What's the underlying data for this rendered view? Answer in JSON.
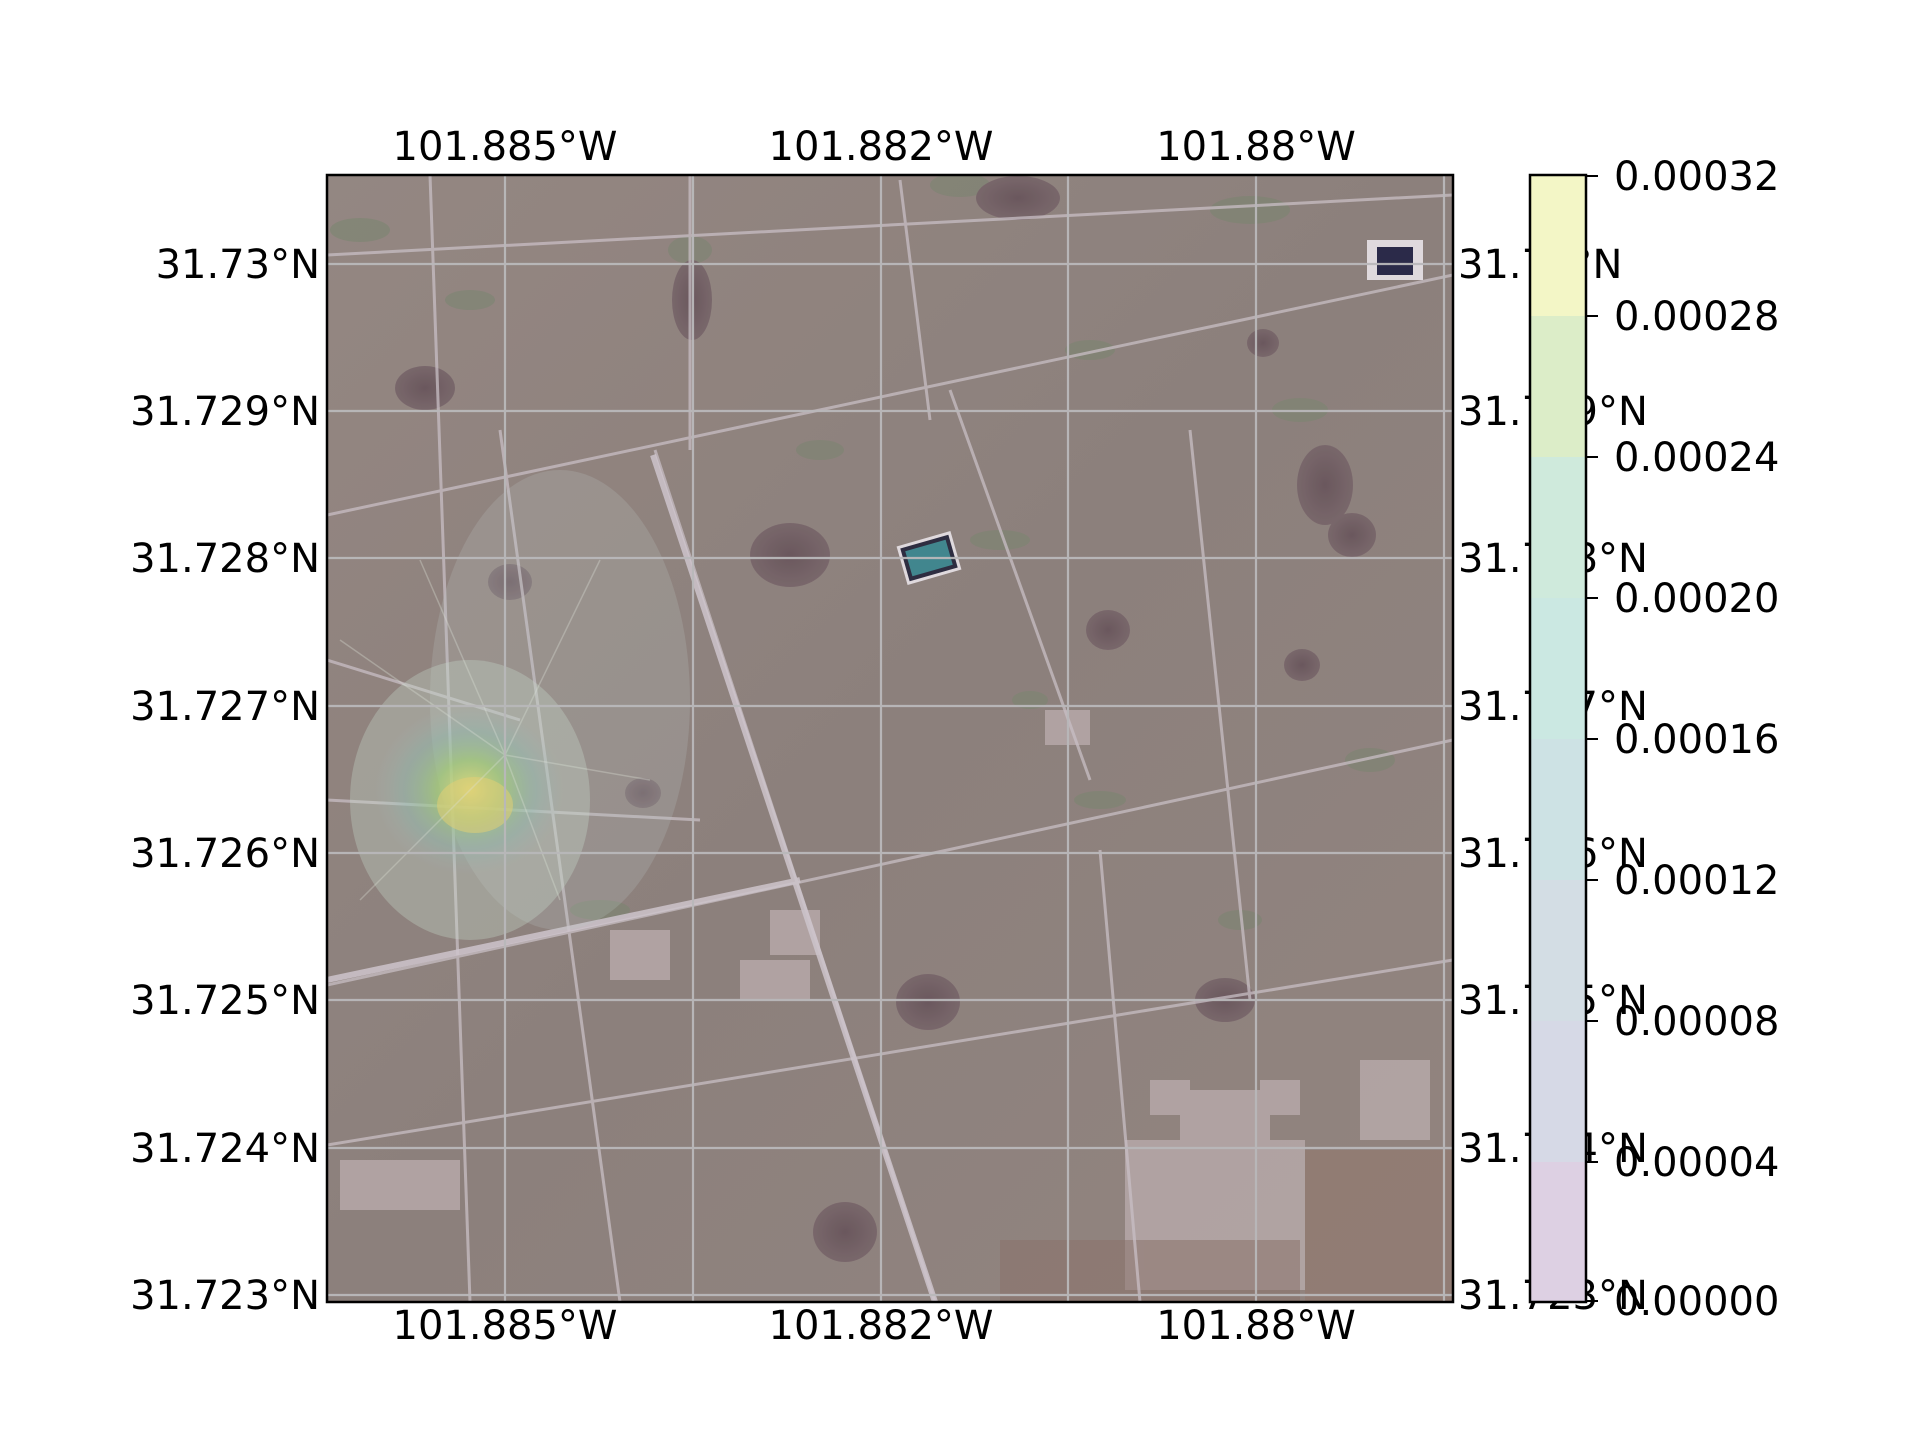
{
  "map": {
    "lon_labels_top": [
      "101.885°W",
      "101.882°W",
      "101.88°W"
    ],
    "lon_labels_bottom": [
      "101.885°W",
      "101.882°W",
      "101.88°W"
    ],
    "lat_labels_left": [
      "31.73°N",
      "31.729°N",
      "31.728°N",
      "31.727°N",
      "31.726°N",
      "31.725°N",
      "31.724°N",
      "31.723°N"
    ],
    "lat_labels_right": [
      "31.73°N",
      "31.729°N",
      "31.728°N",
      "31.727°N",
      "31.726°N",
      "31.725°N",
      "31.724°N",
      "31.723°N"
    ],
    "basemap": "satellite imagery (arid terrain with well pads, lease roads, ponds)",
    "overlay": "concentration plume centered near 101.8855°W, 31.7264°N"
  },
  "colorbar": {
    "tick_labels": [
      "0.00032",
      "0.00028",
      "0.00024",
      "0.00020",
      "0.00016",
      "0.00012",
      "0.00008",
      "0.00004",
      "0.00000"
    ],
    "colors": [
      "#f3f6c6",
      "#dcedc8",
      "#cfeadc",
      "#cbe8e2",
      "#cde2e4",
      "#d3dde4",
      "#d6d9e6",
      "#dcd7e6"
    ],
    "bottom_color": "#ddd0e3"
  },
  "colors": {
    "grid": "#b8b8b8",
    "frame": "#000000",
    "terrain": "#8a7c74",
    "pond_teal": "#2f7f86",
    "pond_dark": "#161637"
  }
}
